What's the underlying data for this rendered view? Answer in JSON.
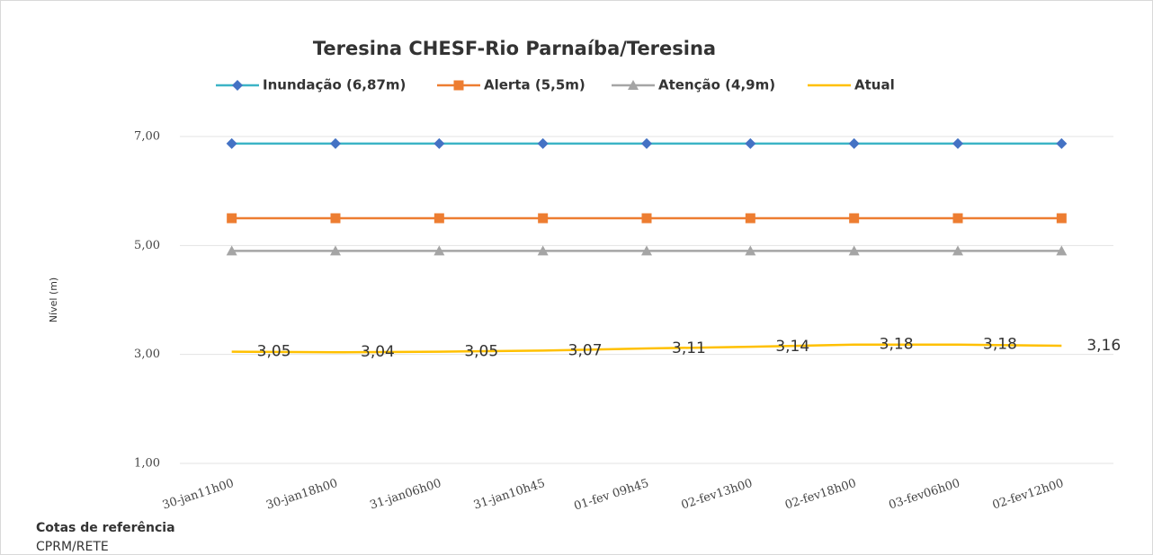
{
  "chart_data": {
    "type": "line",
    "title": "Teresina CHESF-Rio Parnaíba/Teresina",
    "y_label": "Nível (m)",
    "footnote": "Cotas de referência",
    "source": "CPRM/RETE",
    "categories": [
      "30-jan11h00",
      "30-jan18h00",
      "31-jan06h00",
      "31-jan10h45",
      "01-fev 09h45",
      "02-fev13h00",
      "02-fev18h00",
      "03-fev06h00",
      "02-fev12h00"
    ],
    "series": [
      {
        "name": "Inundação (6,87m)",
        "color": "#3cb4c6",
        "marker_color": "#4472c4",
        "marker": "diamond",
        "values": [
          6.87,
          6.87,
          6.87,
          6.87,
          6.87,
          6.87,
          6.87,
          6.87,
          6.87
        ]
      },
      {
        "name": "Alerta (5,5m)",
        "color": "#ed7d31",
        "marker_color": "#ed7d31",
        "marker": "square",
        "values": [
          5.5,
          5.5,
          5.5,
          5.5,
          5.5,
          5.5,
          5.5,
          5.5,
          5.5
        ]
      },
      {
        "name": "Atenção (4,9m)",
        "color": "#a5a5a5",
        "marker_color": "#a5a5a5",
        "marker": "triangle",
        "values": [
          4.9,
          4.9,
          4.9,
          4.9,
          4.9,
          4.9,
          4.9,
          4.9,
          4.9
        ]
      },
      {
        "name": "Atual",
        "color": "#ffc000",
        "values": [
          3.05,
          3.04,
          3.05,
          3.07,
          3.11,
          3.14,
          3.18,
          3.18,
          3.16
        ],
        "value_labels": [
          "3,05",
          "3,04",
          "3,05",
          "3,07",
          "3,11",
          "3,14",
          "3,18",
          "3,18",
          "3,16"
        ]
      }
    ],
    "ylim": [
      1,
      7
    ],
    "yticks": [
      {
        "value": 1,
        "label": "1,00"
      },
      {
        "value": 3,
        "label": "3,00"
      },
      {
        "value": 5,
        "label": "5,00"
      },
      {
        "value": 7,
        "label": "7,00"
      }
    ],
    "grid": true
  }
}
